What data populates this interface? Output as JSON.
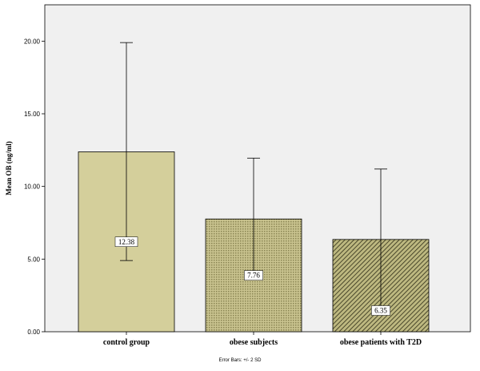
{
  "chart_data": {
    "type": "bar",
    "categories": [
      "control group",
      "obese subjects",
      "obese patients with T2D"
    ],
    "values": [
      12.38,
      7.76,
      6.35
    ],
    "value_labels": [
      "12.38",
      "7.76",
      "6.35"
    ],
    "error_bars": [
      {
        "low": 4.9,
        "high": 19.9
      },
      {
        "low": 3.6,
        "high": 11.95
      },
      {
        "low": 1.5,
        "high": 11.2
      }
    ],
    "ylabel": "Mean OB (ng/ml)",
    "xlabel": "",
    "ylim": [
      0,
      22.5
    ],
    "yticks": [
      0,
      5,
      10,
      15,
      20
    ],
    "ytick_labels": [
      "0.00",
      "5.00",
      "10.00",
      "15.00",
      "20.00"
    ],
    "footnote": "Error Bars: +/- 2 SD",
    "grid": false,
    "colors": {
      "plot_background": "#f0f0f0",
      "bar_fills": [
        "#d4cf9b",
        "#aaa66c",
        "#888552"
      ]
    }
  }
}
